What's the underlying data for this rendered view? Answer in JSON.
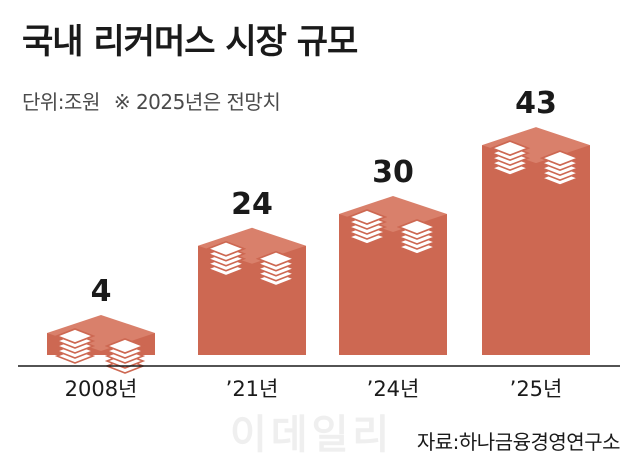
{
  "title": "국내 리커머스 시장 규모",
  "unit_note": "단위:조원",
  "forecast_note": "※ 2025년은 전망치",
  "source": "자료:하나금융경영연구소",
  "watermark": "이데일리",
  "colors": {
    "bar": "#cd6852",
    "bar_top": "#d9806b",
    "bar_edge": "#b85540",
    "money": "#ffffff"
  },
  "chart_data": {
    "type": "bar",
    "title": "국내 리커머스 시장 규모",
    "unit": "단위:조원",
    "categories": [
      "2008년",
      "’21년",
      "’24년",
      "’25년"
    ],
    "values": [
      4,
      24,
      30,
      43
    ],
    "value_labels": [
      "4",
      "24",
      "30",
      "43"
    ],
    "ylim": [
      0,
      43
    ],
    "grid": false,
    "legend": "none",
    "note": "※ 2025년은 전망치"
  }
}
